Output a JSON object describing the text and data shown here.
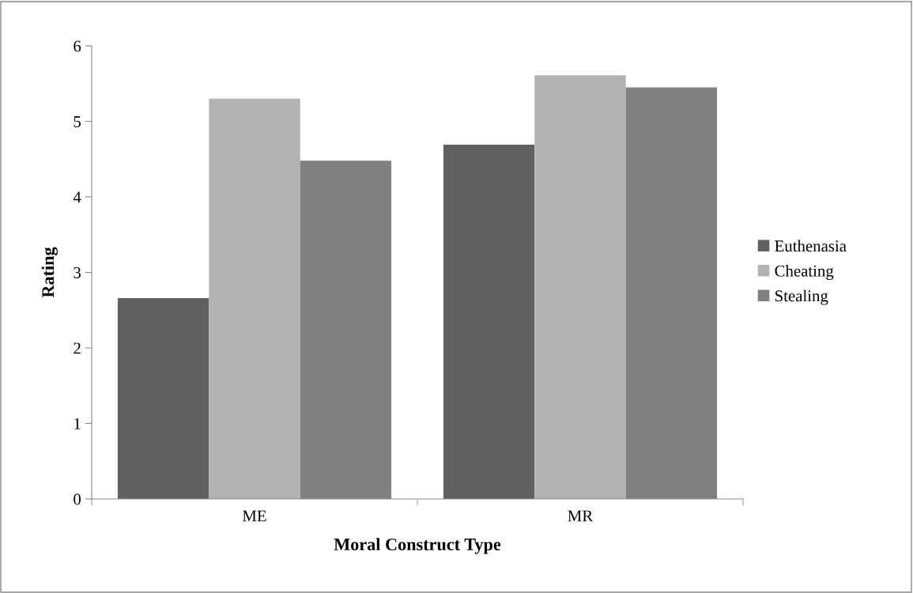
{
  "chart_data": {
    "type": "bar",
    "xlabel": "Moral Construct Type",
    "ylabel": "Rating",
    "categories": [
      "ME",
      "MR"
    ],
    "series": [
      {
        "name": "Euthenasia",
        "color": "#606060",
        "values": [
          2.66,
          4.69
        ]
      },
      {
        "name": "Cheating",
        "color": "#b2b2b2",
        "values": [
          5.3,
          5.61
        ]
      },
      {
        "name": "Stealing",
        "color": "#808080",
        "values": [
          4.48,
          5.45
        ]
      }
    ],
    "ylim": [
      0,
      6
    ],
    "yticks": [
      0,
      1,
      2,
      3,
      4,
      5,
      6
    ],
    "grid": false,
    "legend": "right"
  }
}
